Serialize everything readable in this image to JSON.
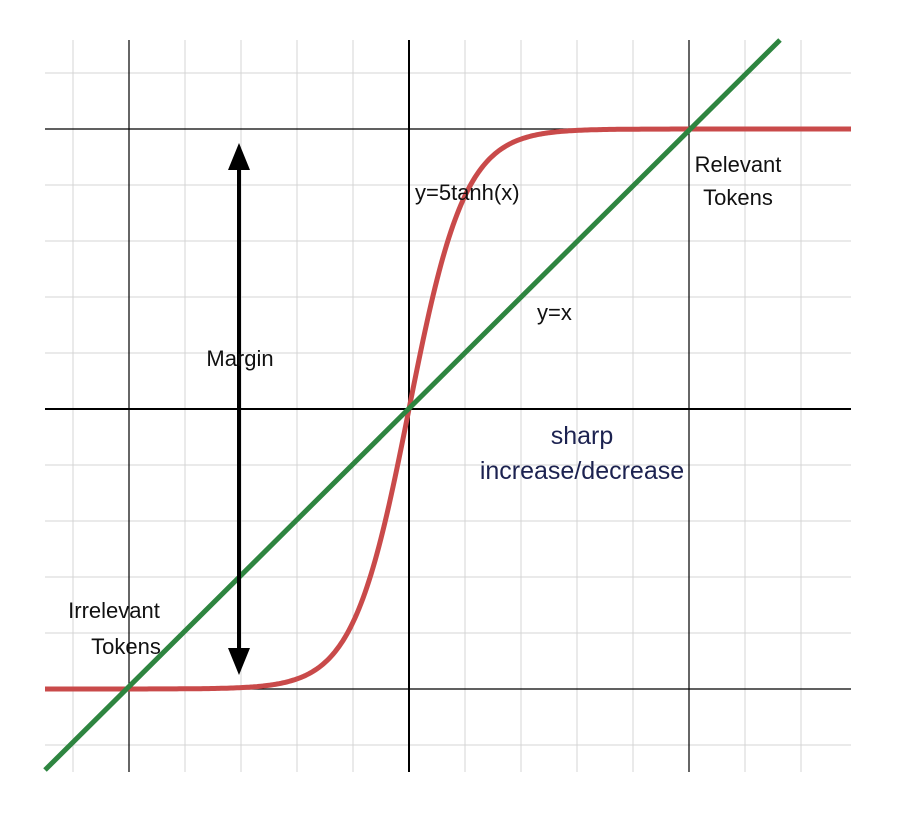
{
  "labels": {
    "curve": "y=5tanh(x)",
    "line": "y=x",
    "margin": "Margin",
    "relevant": [
      "Relevant",
      "Tokens"
    ],
    "irrelevant": [
      "Irrelevant",
      "Tokens"
    ],
    "sharp": [
      "sharp",
      "increase/decrease"
    ]
  }
}
